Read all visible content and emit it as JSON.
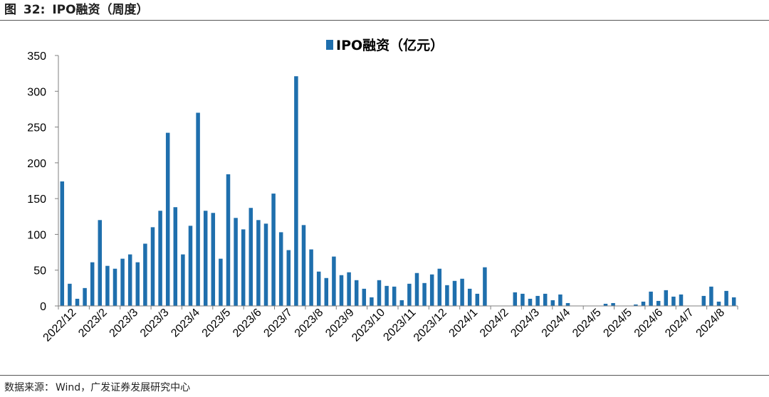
{
  "figure": {
    "label": "图",
    "number": "32:",
    "title": "IPO融资（周度）"
  },
  "source": {
    "prefix": "数据来源：",
    "text": "Wind，广发证券发展研究中心"
  },
  "colors": {
    "bar": "#1f6fad",
    "axis": "#7f7f7f"
  },
  "chart_data": {
    "type": "bar",
    "title": "",
    "xlabel": "",
    "ylabel": "",
    "ylim": [
      0,
      350
    ],
    "yticks": [
      0,
      50,
      100,
      150,
      200,
      250,
      300,
      350
    ],
    "grid": false,
    "legend": {
      "placement": "top-center"
    },
    "series": [
      {
        "name": "IPO融资（亿元）",
        "values": [
          174,
          31,
          10,
          25,
          61,
          120,
          56,
          52,
          66,
          72,
          61,
          87,
          110,
          133,
          242,
          138,
          72,
          112,
          270,
          133,
          130,
          66,
          184,
          123,
          107,
          137,
          120,
          115,
          157,
          103,
          78,
          321,
          113,
          79,
          48,
          39,
          69,
          43,
          47,
          36,
          24,
          12,
          36,
          28,
          27,
          8,
          31,
          46,
          32,
          44,
          52,
          29,
          35,
          38,
          24,
          17,
          54,
          0,
          0,
          0,
          19,
          17,
          10,
          14,
          17,
          8,
          16,
          4,
          0,
          0,
          0,
          0,
          3,
          4,
          0,
          0,
          2,
          6,
          20,
          7,
          22,
          13,
          16,
          0,
          0,
          14,
          27,
          6,
          21,
          12
        ]
      }
    ],
    "category_labels": [
      "2022/12",
      "2023/2",
      "2023/3",
      "2023/3",
      "2023/4",
      "2023/5",
      "2023/6",
      "2023/7",
      "2023/8",
      "2023/9",
      "2023/10",
      "2023/11",
      "2023/12",
      "2024/1",
      "2024/2",
      "2024/3",
      "2024/4",
      "2024/5",
      "2024/5",
      "2024/6",
      "2024/7",
      "2024/8"
    ]
  }
}
